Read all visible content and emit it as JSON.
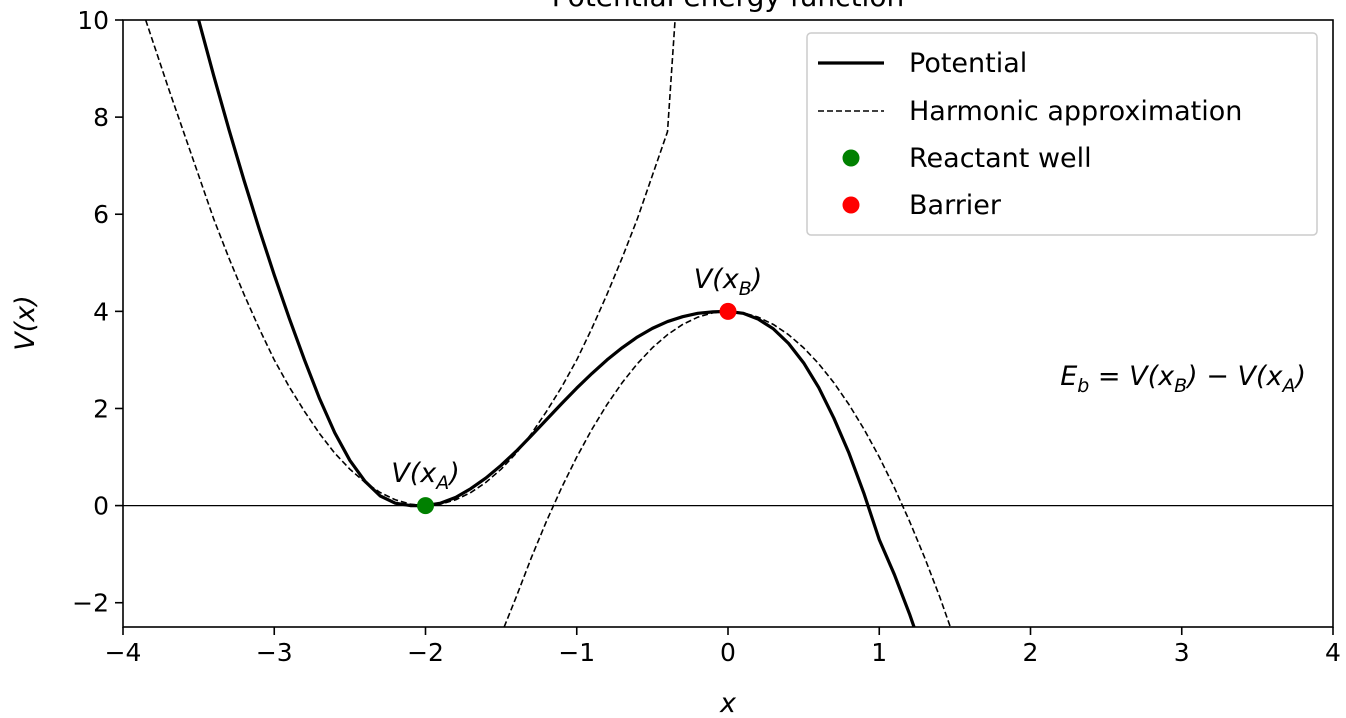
{
  "chart_data": {
    "type": "line",
    "title": "Potential energy function",
    "xlabel": "x",
    "ylabel": "V(x)",
    "xlim": [
      -4,
      4
    ],
    "ylim": [
      -2.5,
      10
    ],
    "x_ticks": [
      -4,
      -3,
      -2,
      -1,
      0,
      1,
      2,
      3,
      4
    ],
    "x_tick_labels": [
      "−4",
      "−3",
      "−2",
      "−1",
      "0",
      "1",
      "2",
      "3",
      "4"
    ],
    "y_ticks": [
      -2,
      0,
      2,
      4,
      6,
      8,
      10
    ],
    "y_tick_labels": [
      "−2",
      "0",
      "2",
      "4",
      "6",
      "8",
      "10"
    ],
    "grid": false,
    "legend_position": "top-right",
    "series": [
      {
        "name": "Potential",
        "style": "solid",
        "color": "#000000",
        "x": [
          -3.5,
          -3.4,
          -3.3,
          -3.2,
          -3.1,
          -3.0,
          -2.9,
          -2.8,
          -2.7,
          -2.6,
          -2.5,
          -2.4,
          -2.3,
          -2.2,
          -2.1,
          -2.0,
          -1.9,
          -1.8,
          -1.7,
          -1.6,
          -1.5,
          -1.4,
          -1.3,
          -1.2,
          -1.1,
          -1.0,
          -0.9,
          -0.8,
          -0.7,
          -0.6,
          -0.5,
          -0.4,
          -0.3,
          -0.2,
          -0.1,
          0.0,
          0.1,
          0.2,
          0.3,
          0.4,
          0.5,
          0.6,
          0.7,
          0.8,
          0.9,
          1.0,
          1.1,
          1.2,
          1.23
        ],
        "y": [
          10.0,
          8.85,
          7.75,
          6.7,
          5.7,
          4.75,
          3.85,
          3.0,
          2.2,
          1.5,
          0.93,
          0.5,
          0.2,
          0.05,
          0.0,
          0.0,
          0.05,
          0.17,
          0.35,
          0.57,
          0.83,
          1.12,
          1.44,
          1.77,
          2.1,
          2.42,
          2.72,
          3.0,
          3.25,
          3.47,
          3.65,
          3.79,
          3.89,
          3.96,
          3.99,
          4.0,
          3.96,
          3.84,
          3.64,
          3.34,
          2.94,
          2.43,
          1.8,
          1.08,
          0.24,
          -0.7,
          -1.42,
          -2.23,
          -2.5
        ]
      },
      {
        "name": "Harmonic approximation",
        "style": "dashed",
        "color": "#000000",
        "x": [
          -3.85,
          -3.7,
          -3.6,
          -3.5,
          -3.4,
          -3.3,
          -3.2,
          -3.1,
          -3.0,
          -2.9,
          -2.8,
          -2.7,
          -2.6,
          -2.5,
          -2.4,
          -2.3,
          -2.2,
          -2.1,
          -2.0,
          -1.9,
          -1.8,
          -1.7,
          -1.6,
          -1.5,
          -1.4,
          -1.3,
          -1.2,
          -1.1,
          -1.0,
          -0.9,
          -0.8,
          -0.7,
          -0.6,
          -0.5,
          -0.4,
          -0.35
        ],
        "y": [
          10.0,
          8.6,
          7.7,
          6.8,
          5.9,
          5.1,
          4.35,
          3.65,
          3.0,
          2.44,
          1.94,
          1.48,
          1.08,
          0.75,
          0.48,
          0.27,
          0.12,
          0.03,
          0.0,
          0.03,
          0.12,
          0.27,
          0.48,
          0.75,
          1.08,
          1.48,
          1.94,
          2.44,
          3.0,
          3.65,
          4.35,
          5.1,
          5.9,
          6.8,
          7.7,
          10.0
        ]
      },
      {
        "name": "",
        "style": "dashed",
        "color": "#000000",
        "x": [
          -1.48,
          -1.4,
          -1.3,
          -1.2,
          -1.1,
          -1.0,
          -0.9,
          -0.8,
          -0.7,
          -0.6,
          -0.5,
          -0.4,
          -0.3,
          -0.2,
          -0.1,
          0.0,
          0.1,
          0.2,
          0.3,
          0.4,
          0.5,
          0.6,
          0.7,
          0.8,
          0.9,
          1.0,
          1.1,
          1.2,
          1.3,
          1.4,
          1.47
        ],
        "y": [
          -2.5,
          -1.88,
          -1.07,
          -0.32,
          0.37,
          1.0,
          1.57,
          2.08,
          2.53,
          2.92,
          3.25,
          3.52,
          3.73,
          3.88,
          3.97,
          4.0,
          3.97,
          3.88,
          3.73,
          3.52,
          3.25,
          2.92,
          2.53,
          2.08,
          1.57,
          1.0,
          0.37,
          -0.32,
          -1.07,
          -1.88,
          -2.5
        ]
      },
      {
        "name": "Reactant well",
        "style": "marker",
        "color": "#008000",
        "x": [
          -2
        ],
        "y": [
          0
        ]
      },
      {
        "name": "Barrier",
        "style": "marker",
        "color": "#ff0000",
        "x": [
          0
        ],
        "y": [
          4
        ]
      }
    ],
    "reference_line": {
      "y": 0,
      "color": "#000000"
    },
    "annotations": [
      {
        "base": "V(x",
        "sub": "A",
        "tail": ")",
        "x": -2,
        "y": 0.4
      },
      {
        "base": "V(x",
        "sub": "B",
        "tail": ")",
        "x": 0,
        "y": 4.4
      }
    ],
    "formula": {
      "parts": [
        {
          "t": "E",
          "sub": false
        },
        {
          "t": "b",
          "sub": true
        },
        {
          "t": " = V(x",
          "sub": false
        },
        {
          "t": "B",
          "sub": true
        },
        {
          "t": ") − V(x",
          "sub": false
        },
        {
          "t": "A",
          "sub": true
        },
        {
          "t": ")",
          "sub": false
        }
      ]
    }
  }
}
